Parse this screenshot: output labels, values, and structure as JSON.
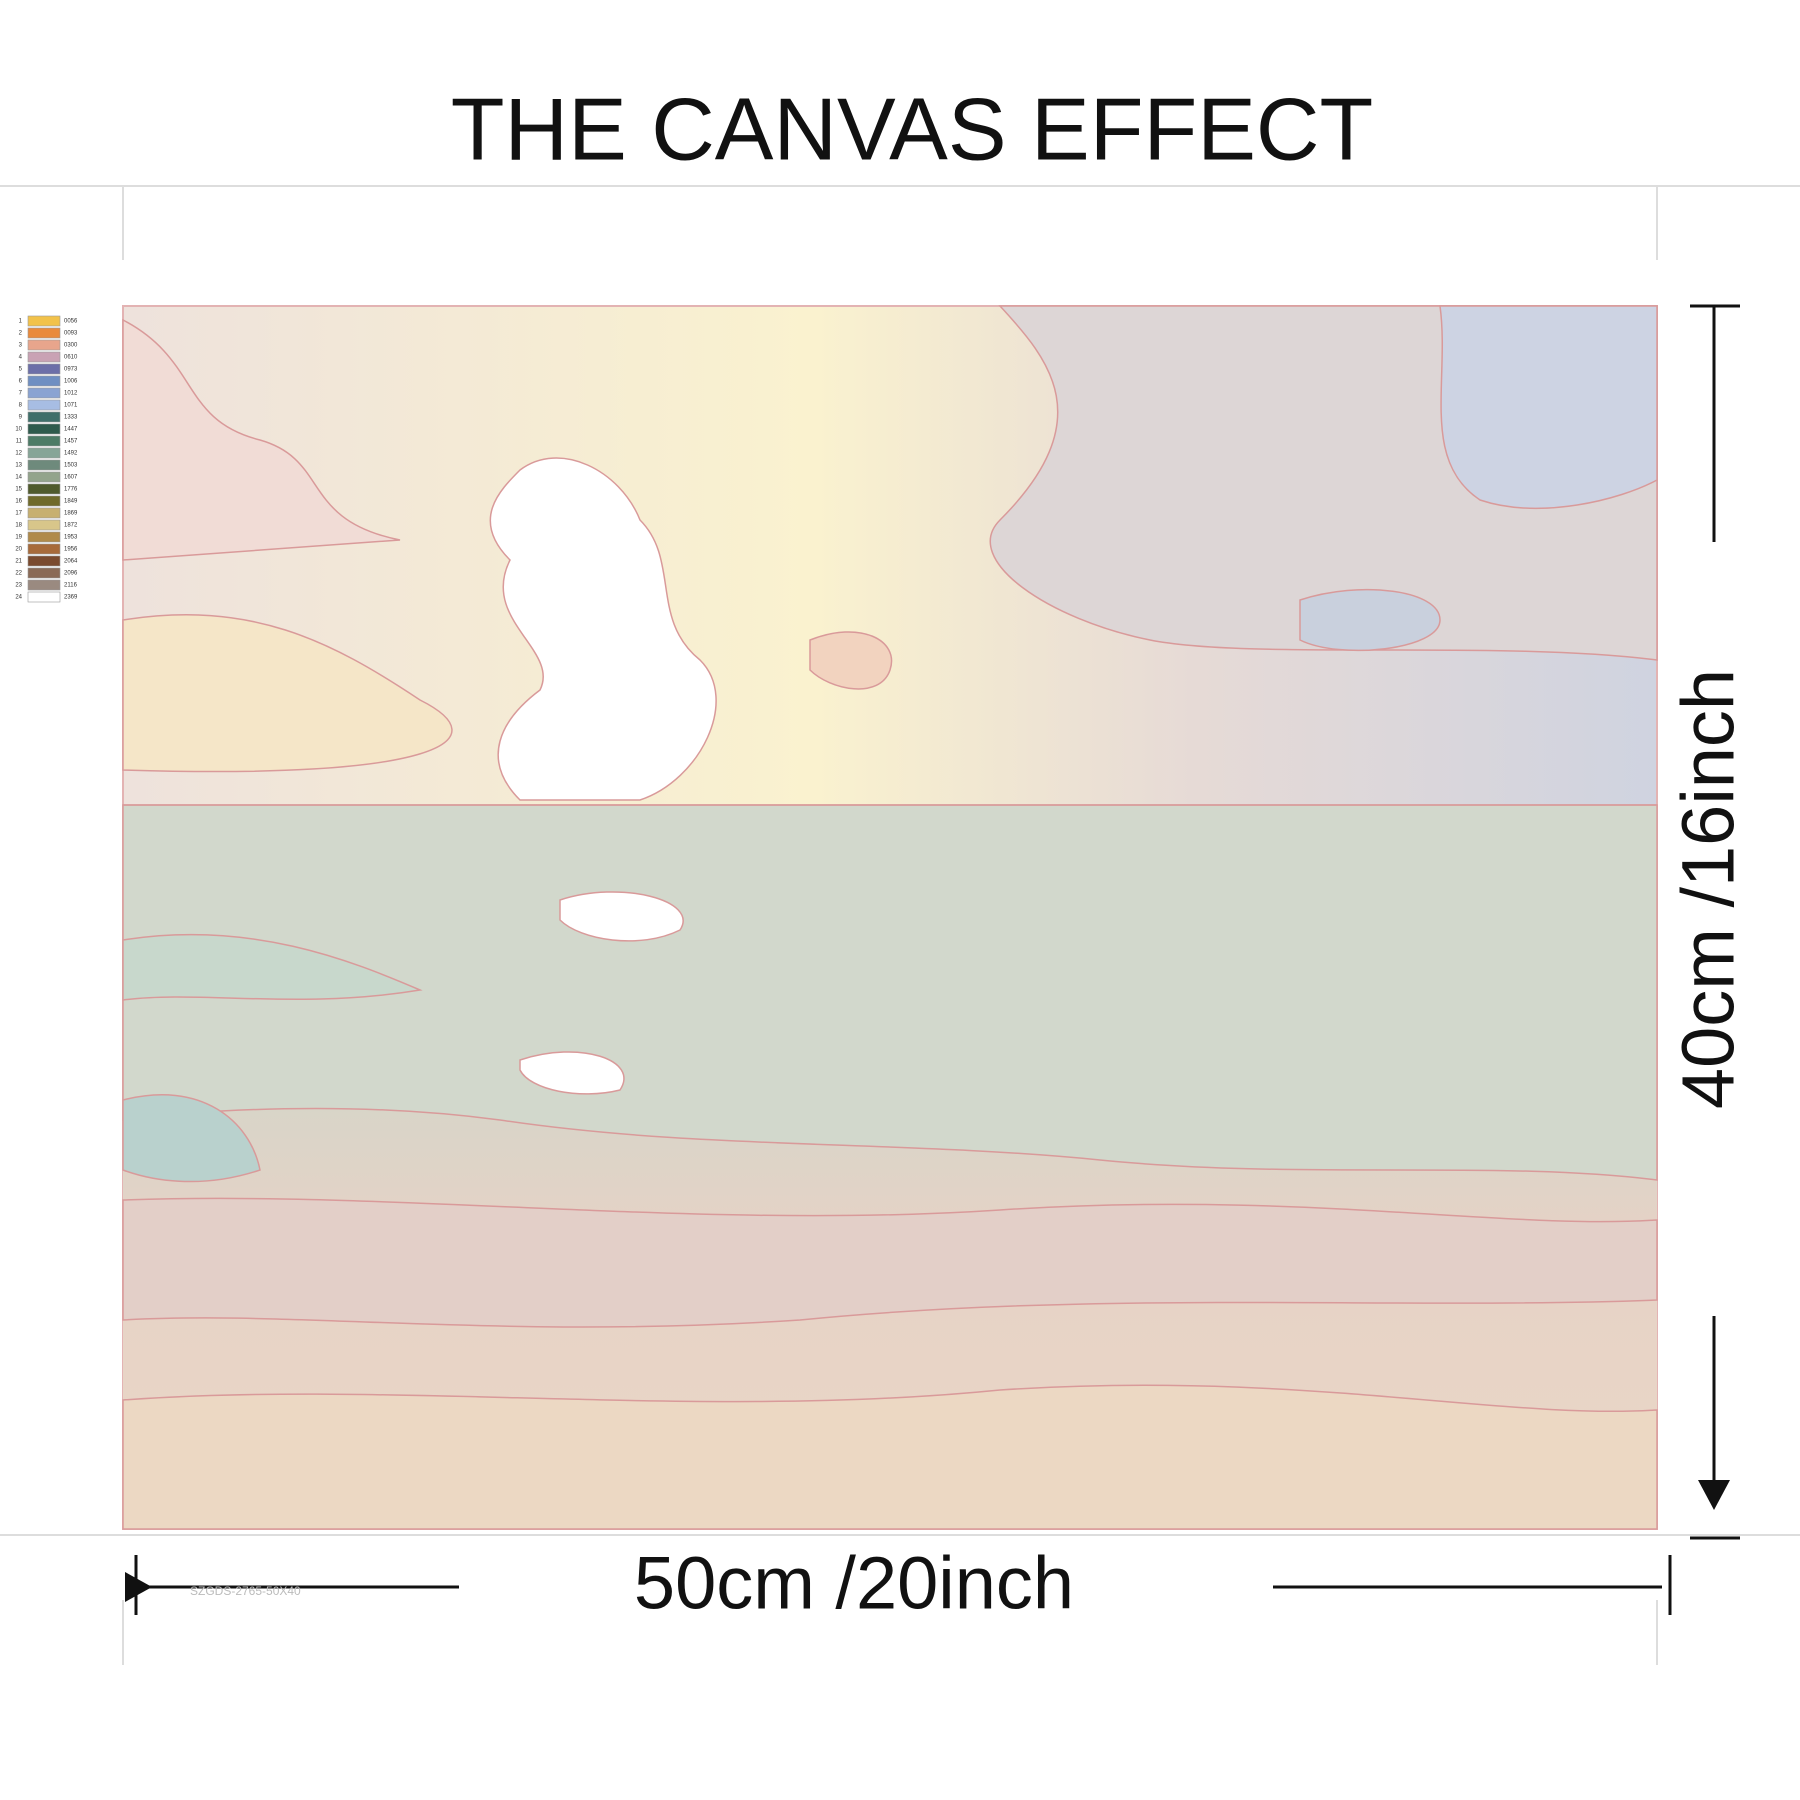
{
  "title": "THE CANVAS EFFECT",
  "width_label": "50cm /20inch",
  "height_label": "40cm /16inch",
  "product_code": "SZGDS-2765-50X40",
  "palette": [
    {
      "number": "1",
      "code": "0056",
      "color": "#f2c24a"
    },
    {
      "number": "2",
      "code": "0093",
      "color": "#e98a3c"
    },
    {
      "number": "3",
      "code": "0300",
      "color": "#e8a58c"
    },
    {
      "number": "4",
      "code": "0610",
      "color": "#c9a2b4"
    },
    {
      "number": "5",
      "code": "0973",
      "color": "#6c6fa8"
    },
    {
      "number": "6",
      "code": "1006",
      "color": "#6f8fc2"
    },
    {
      "number": "7",
      "code": "1012",
      "color": "#8aa3d2"
    },
    {
      "number": "8",
      "code": "1071",
      "color": "#a7bde3"
    },
    {
      "number": "9",
      "code": "1333",
      "color": "#3f6f6a"
    },
    {
      "number": "10",
      "code": "1447",
      "color": "#2e5a4c"
    },
    {
      "number": "11",
      "code": "1457",
      "color": "#4d7b66"
    },
    {
      "number": "12",
      "code": "1492",
      "color": "#86a597"
    },
    {
      "number": "13",
      "code": "1503",
      "color": "#6e8a7c"
    },
    {
      "number": "14",
      "code": "1607",
      "color": "#93a48c"
    },
    {
      "number": "15",
      "code": "1776",
      "color": "#4f5a2c"
    },
    {
      "number": "16",
      "code": "1849",
      "color": "#6f6a2a"
    },
    {
      "number": "17",
      "code": "1869",
      "color": "#c7b070"
    },
    {
      "number": "18",
      "code": "1872",
      "color": "#d8c68a"
    },
    {
      "number": "19",
      "code": "1953",
      "color": "#b08a4a"
    },
    {
      "number": "20",
      "code": "1956",
      "color": "#a76a3a"
    },
    {
      "number": "21",
      "code": "2064",
      "color": "#7a4a2e"
    },
    {
      "number": "22",
      "code": "2096",
      "color": "#8a6a56"
    },
    {
      "number": "23",
      "code": "2116",
      "color": "#9a8a80"
    },
    {
      "number": "24",
      "code": "2369",
      "color": "#ffffff"
    }
  ]
}
